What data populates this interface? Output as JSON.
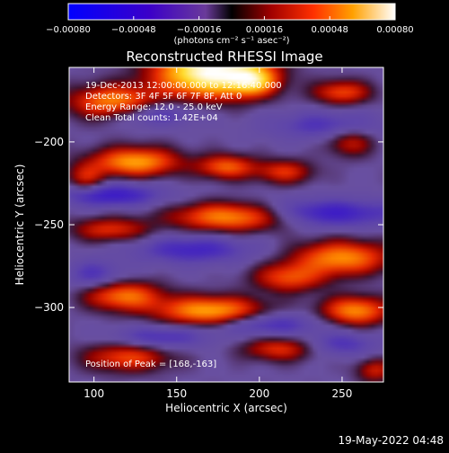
{
  "chart_data": {
    "type": "heatmap",
    "title": "Reconstructed RHESSI Image",
    "xlabel": "Heliocentric X (arcsec)",
    "ylabel": "Heliocentric Y (arcsec)",
    "xlim": [
      85,
      275
    ],
    "ylim": [
      -345,
      -155
    ],
    "x_ticks": [
      100,
      150,
      200,
      250
    ],
    "y_ticks": [
      -200,
      -250,
      -300
    ],
    "x_tick_labels": [
      "100",
      "150",
      "200",
      "250"
    ],
    "y_tick_labels": [
      "−200",
      "−250",
      "−300"
    ],
    "colorbar": {
      "min": -0.0008,
      "max": 0.0008,
      "ticks": [
        -0.0008,
        -0.00048,
        -0.00016,
        0.00016,
        0.00048,
        0.0008
      ],
      "tick_labels": [
        "−0.00080",
        "−0.00048",
        "−0.00016",
        "0.00016",
        "0.00048",
        "0.00080"
      ],
      "unit_label": "(photons cm⁻² s⁻¹ asec⁻²)"
    },
    "annotations": [
      "19-Dec-2013 12:00:00.000 to 12:16:40.000",
      "Detectors: 3F 4F 5F 6F 7F 8F, Att 0",
      "Energy Range: 12.0 - 25.0 keV",
      "Clean    Total counts: 1.42E+04"
    ],
    "peak_text": "Position of Peak = [168,-163]",
    "peak": [
      168,
      -163
    ],
    "blobs": [
      {
        "x": 170,
        "y": -158,
        "sx": 22,
        "sy": 10,
        "v": 1.0
      },
      {
        "x": 196,
        "y": -163,
        "sx": 10,
        "sy": 6,
        "v": 0.55
      },
      {
        "x": 112,
        "y": -176,
        "sx": 18,
        "sy": 7,
        "v": 0.55
      },
      {
        "x": 250,
        "y": -170,
        "sx": 12,
        "sy": 5,
        "v": 0.4
      },
      {
        "x": 125,
        "y": -212,
        "sx": 18,
        "sy": 6,
        "v": 0.6
      },
      {
        "x": 180,
        "y": -215,
        "sx": 12,
        "sy": 5,
        "v": 0.45
      },
      {
        "x": 215,
        "y": -218,
        "sx": 12,
        "sy": 5,
        "v": 0.35
      },
      {
        "x": 255,
        "y": -200,
        "sx": 10,
        "sy": 6,
        "v": 0.3
      },
      {
        "x": 185,
        "y": -245,
        "sx": 25,
        "sy": 6,
        "v": 0.65
      },
      {
        "x": 110,
        "y": -253,
        "sx": 16,
        "sy": 5,
        "v": 0.35
      },
      {
        "x": 95,
        "y": -222,
        "sx": 8,
        "sy": 6,
        "v": 0.3
      },
      {
        "x": 250,
        "y": -270,
        "sx": 20,
        "sy": 7,
        "v": 0.55
      },
      {
        "x": 218,
        "y": -282,
        "sx": 15,
        "sy": 6,
        "v": 0.4
      },
      {
        "x": 118,
        "y": -293,
        "sx": 16,
        "sy": 6,
        "v": 0.5
      },
      {
        "x": 170,
        "y": -302,
        "sx": 22,
        "sy": 6,
        "v": 0.62
      },
      {
        "x": 258,
        "y": -302,
        "sx": 14,
        "sy": 6,
        "v": 0.55
      },
      {
        "x": 120,
        "y": -330,
        "sx": 18,
        "sy": 6,
        "v": 0.4
      },
      {
        "x": 212,
        "y": -325,
        "sx": 15,
        "sy": 5,
        "v": 0.35
      },
      {
        "x": 270,
        "y": -338,
        "sx": 8,
        "sy": 5,
        "v": 0.3
      },
      {
        "x": 110,
        "y": -232,
        "sx": 22,
        "sy": 5,
        "v": -0.38
      },
      {
        "x": 235,
        "y": -243,
        "sx": 35,
        "sy": 6,
        "v": -0.4
      },
      {
        "x": 160,
        "y": -265,
        "sx": 25,
        "sy": 6,
        "v": -0.32
      },
      {
        "x": 135,
        "y": -183,
        "sx": 18,
        "sy": 5,
        "v": -0.3
      },
      {
        "x": 240,
        "y": -190,
        "sx": 25,
        "sy": 6,
        "v": -0.25
      },
      {
        "x": 205,
        "y": -310,
        "sx": 22,
        "sy": 5,
        "v": -0.3
      },
      {
        "x": 140,
        "y": -318,
        "sx": 20,
        "sy": 5,
        "v": -0.28
      },
      {
        "x": 250,
        "y": -322,
        "sx": 15,
        "sy": 5,
        "v": -0.25
      },
      {
        "x": 100,
        "y": -280,
        "sx": 12,
        "sy": 6,
        "v": -0.25
      }
    ]
  },
  "footer": {
    "timestamp": "19-May-2022 04:48"
  }
}
